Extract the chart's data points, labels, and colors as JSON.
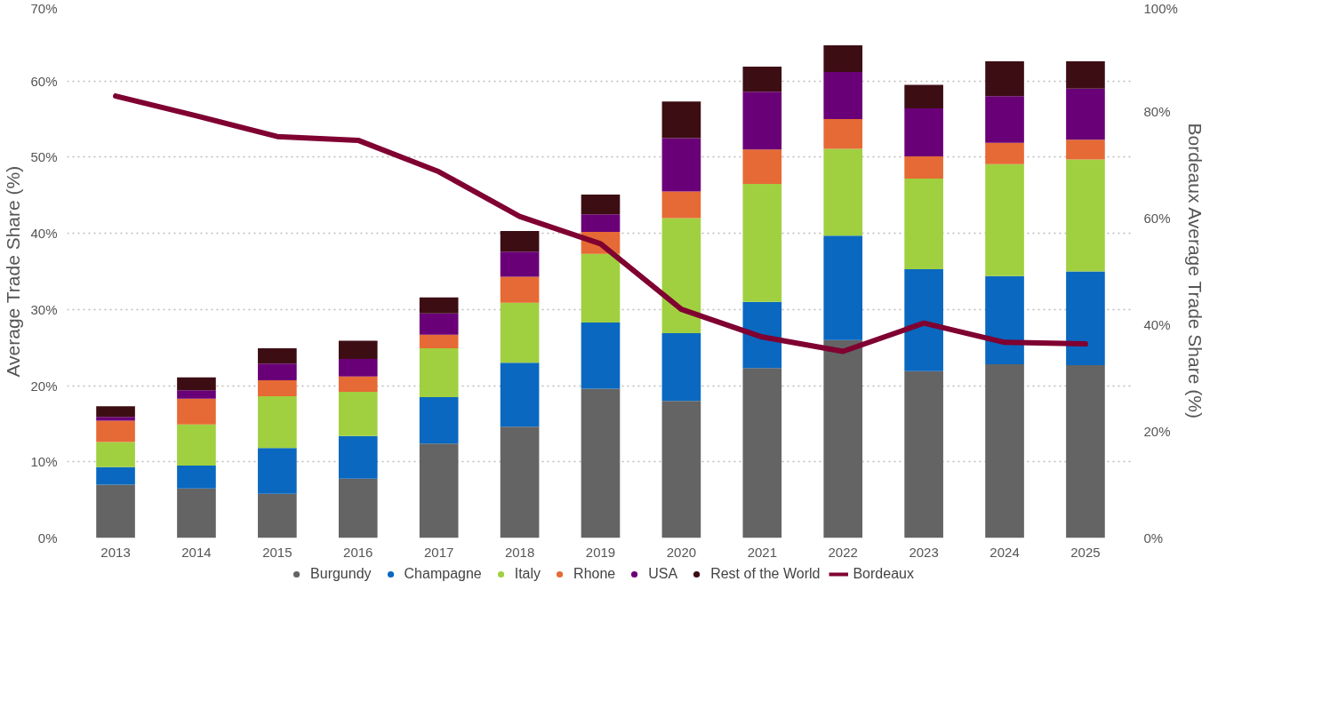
{
  "chart_data": {
    "type": "bar",
    "stacked": true,
    "xlabel": null,
    "ylabel": "Average Trade Share (%)",
    "y2label": "Bordeaux Average Trade Share (%)",
    "categories": [
      "2013",
      "2014",
      "2015",
      "2016",
      "2017",
      "2018",
      "2019",
      "2020",
      "2021",
      "2022",
      "2023",
      "2024",
      "2025"
    ],
    "series": [
      {
        "name": "Burgundy",
        "color": "#646464",
        "values": [
          7.0,
          6.5,
          5.8,
          7.8,
          12.4,
          14.6,
          19.6,
          18.0,
          22.3,
          26.0,
          21.9,
          22.8,
          22.7
        ]
      },
      {
        "name": "Champagne",
        "color": "#0a68c0",
        "values": [
          2.3,
          3.0,
          6.0,
          5.6,
          6.1,
          8.4,
          8.7,
          8.9,
          8.7,
          13.7,
          13.4,
          11.6,
          12.3
        ]
      },
      {
        "name": "Italy",
        "color": "#a0d040",
        "values": [
          3.3,
          5.4,
          6.8,
          5.8,
          6.4,
          7.9,
          9.0,
          15.1,
          15.5,
          11.4,
          11.9,
          14.7,
          14.7
        ]
      },
      {
        "name": "Rhone",
        "color": "#e66a35",
        "values": [
          2.8,
          3.4,
          2.1,
          2.0,
          1.8,
          3.4,
          2.9,
          3.5,
          4.5,
          3.9,
          2.9,
          2.8,
          2.6
        ]
      },
      {
        "name": "USA",
        "color": "#6a0077",
        "values": [
          0.5,
          1.1,
          2.2,
          2.3,
          2.8,
          3.3,
          2.3,
          7.0,
          7.6,
          6.2,
          6.3,
          6.1,
          6.7
        ]
      },
      {
        "name": "Rest of the World",
        "color": "#3d0d14",
        "values": [
          1.4,
          1.7,
          2.0,
          2.4,
          2.1,
          2.7,
          2.6,
          4.8,
          3.3,
          3.5,
          3.1,
          4.6,
          3.6
        ]
      },
      {
        "name": "Bordeaux",
        "type": "line",
        "axis": "y2",
        "color": "#7f0031",
        "values": [
          82.9,
          79.2,
          75.3,
          74.6,
          68.7,
          60.3,
          55.2,
          42.9,
          37.7,
          35.0,
          40.3,
          36.7,
          36.4
        ]
      }
    ],
    "ylim": [
      0,
      70
    ],
    "yticks": [
      {
        "value": 0,
        "label": "0%"
      },
      {
        "value": 10,
        "label": "10%"
      },
      {
        "value": 20,
        "label": "20%"
      },
      {
        "value": 30,
        "label": "30%"
      },
      {
        "value": 40,
        "label": "40%"
      },
      {
        "value": 50,
        "label": "50%"
      },
      {
        "value": 60,
        "label": "60%"
      },
      {
        "value": 70,
        "label": "70%"
      }
    ],
    "y2lim": [
      0,
      100
    ],
    "y2ticks": [
      {
        "value": 0,
        "label": "0%"
      },
      {
        "value": 20,
        "label": "20%"
      },
      {
        "value": 40,
        "label": "40%"
      },
      {
        "value": 60,
        "label": "60%"
      },
      {
        "value": 80,
        "label": "80%"
      },
      {
        "value": 100,
        "label": "100%"
      }
    ],
    "grid": "y",
    "legend": "bottom",
    "line_style": "solid"
  }
}
